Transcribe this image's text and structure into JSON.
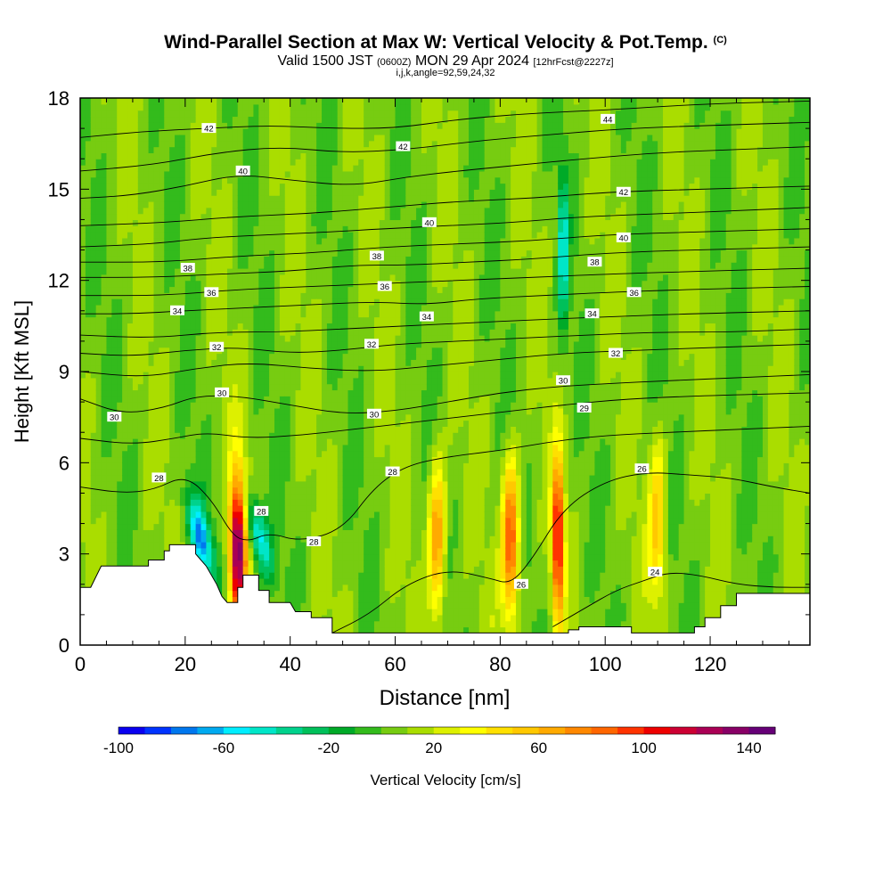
{
  "header": {
    "title": "Wind-Parallel Section at Max W: Vertical Velocity & Pot.Temp.",
    "title_unit": "(C)",
    "valid_prefix": "Valid 1500 JST",
    "valid_zulu": "(0600Z)",
    "valid_date": "MON 29 Apr 2024",
    "forecast": "[12hrFcst@2227z]",
    "indices": "i,j,k,angle=92,59,24,32"
  },
  "chart_data": {
    "type": "heatmap",
    "xlabel": "Distance [nm]",
    "ylabel": "Height [Kft MSL]",
    "xlim": [
      0,
      139
    ],
    "ylim": [
      0,
      18
    ],
    "x_ticks": [
      0,
      20,
      40,
      60,
      80,
      100,
      120
    ],
    "y_ticks": [
      0,
      3,
      6,
      9,
      12,
      15,
      18
    ],
    "colorbar": {
      "label": "Vertical Velocity [cm/s]",
      "range": [
        -100,
        150
      ],
      "step": 10,
      "ticks": [
        -100,
        -60,
        -20,
        20,
        60,
        100,
        140
      ],
      "colors": [
        "#0a00f0",
        "#0033ff",
        "#0077ee",
        "#00aaf0",
        "#00eeff",
        "#00e6c8",
        "#00d28c",
        "#00c05a",
        "#00aa28",
        "#33bb1c",
        "#77cc11",
        "#aadd00",
        "#ddf000",
        "#ffff00",
        "#ffe000",
        "#ffc800",
        "#ffaa00",
        "#ff8800",
        "#ff6600",
        "#ff3300",
        "#ee0000",
        "#cc0033",
        "#aa0055",
        "#880066",
        "#660077"
      ]
    },
    "terrain_kft": [
      [
        0,
        1.9
      ],
      [
        2,
        1.9
      ],
      [
        4,
        2.6
      ],
      [
        13,
        2.6
      ],
      [
        13,
        2.6
      ],
      [
        13,
        2.8
      ],
      [
        16,
        2.8
      ],
      [
        16,
        3.1
      ],
      [
        17,
        3.1
      ],
      [
        17,
        3.3
      ],
      [
        22,
        3.3
      ],
      [
        22,
        3.0
      ],
      [
        24,
        2.6
      ],
      [
        26,
        2.0
      ],
      [
        27,
        1.6
      ],
      [
        28,
        1.4
      ],
      [
        28,
        1.4
      ],
      [
        30,
        1.4
      ],
      [
        30,
        1.9
      ],
      [
        31,
        1.9
      ],
      [
        31,
        2.3
      ],
      [
        34,
        2.3
      ],
      [
        34,
        1.8
      ],
      [
        36,
        1.8
      ],
      [
        36,
        1.4
      ],
      [
        40,
        1.4
      ],
      [
        41,
        1.1
      ],
      [
        44,
        1.1
      ],
      [
        44,
        0.9
      ],
      [
        48,
        0.9
      ],
      [
        48,
        0.4
      ],
      [
        93,
        0.4
      ],
      [
        93,
        0.5
      ],
      [
        95,
        0.5
      ],
      [
        95,
        0.6
      ],
      [
        105,
        0.6
      ],
      [
        105,
        0.4
      ],
      [
        117,
        0.4
      ],
      [
        117,
        0.6
      ],
      [
        119,
        0.6
      ],
      [
        119,
        0.9
      ],
      [
        122,
        0.9
      ],
      [
        122,
        1.3
      ],
      [
        125,
        1.3
      ],
      [
        125,
        1.7
      ],
      [
        139,
        1.7
      ]
    ],
    "updraft_cores": [
      {
        "x": 30,
        "y": 3.2,
        "peak_cm_s": 130
      },
      {
        "x": 68,
        "y": 3.5,
        "peak_cm_s": 70
      },
      {
        "x": 82,
        "y": 3.5,
        "peak_cm_s": 90
      },
      {
        "x": 91,
        "y": 3.5,
        "peak_cm_s": 110
      },
      {
        "x": 110,
        "y": 4.2,
        "peak_cm_s": 50
      }
    ],
    "downdraft_cores": [
      {
        "x": 23,
        "y": 3.5,
        "peak_cm_s": -70
      },
      {
        "x": 34,
        "y": 3.6,
        "peak_cm_s": -60
      },
      {
        "x": 92,
        "y": 13.0,
        "peak_cm_s": -55
      }
    ],
    "isentropes": [
      {
        "value": 24,
        "pts": [
          [
            90,
            0.6
          ],
          [
            96,
            1.2
          ],
          [
            102,
            1.8
          ],
          [
            107,
            2.1
          ],
          [
            112,
            2.4
          ],
          [
            118,
            2.3
          ],
          [
            125,
            2.0
          ],
          [
            132,
            1.9
          ],
          [
            139,
            1.9
          ]
        ]
      },
      {
        "value": 26,
        "pts": [
          [
            48,
            0.4
          ],
          [
            55,
            1.0
          ],
          [
            62,
            2.0
          ],
          [
            70,
            2.5
          ],
          [
            78,
            2.2
          ],
          [
            82,
            2.0
          ],
          [
            86,
            2.8
          ],
          [
            92,
            4.5
          ],
          [
            100,
            5.4
          ],
          [
            108,
            5.7
          ],
          [
            116,
            5.6
          ],
          [
            124,
            5.5
          ],
          [
            132,
            5.2
          ],
          [
            139,
            5.0
          ]
        ]
      },
      {
        "value": 28,
        "pts": [
          [
            0,
            5.2
          ],
          [
            8,
            5.0
          ],
          [
            14,
            5.1
          ],
          [
            20,
            5.6
          ],
          [
            25,
            4.8
          ],
          [
            29,
            3.6
          ],
          [
            32,
            3.4
          ],
          [
            36,
            3.7
          ],
          [
            42,
            3.4
          ],
          [
            50,
            3.8
          ],
          [
            56,
            5.2
          ],
          [
            62,
            5.9
          ],
          [
            70,
            6.2
          ],
          [
            80,
            6.4
          ],
          [
            90,
            6.7
          ],
          [
            100,
            6.9
          ],
          [
            112,
            7.0
          ],
          [
            126,
            7.1
          ],
          [
            139,
            7.2
          ]
        ]
      },
      {
        "value": 29,
        "pts": [
          [
            0,
            6.8
          ],
          [
            10,
            6.6
          ],
          [
            18,
            6.8
          ],
          [
            24,
            7.0
          ],
          [
            32,
            6.8
          ],
          [
            42,
            6.9
          ],
          [
            52,
            7.1
          ],
          [
            62,
            7.3
          ],
          [
            72,
            7.5
          ],
          [
            82,
            7.7
          ],
          [
            92,
            7.9
          ],
          [
            104,
            8.1
          ],
          [
            118,
            8.2
          ],
          [
            139,
            8.3
          ]
        ]
      },
      {
        "value": 30,
        "pts": [
          [
            0,
            8.1
          ],
          [
            8,
            7.6
          ],
          [
            16,
            7.8
          ],
          [
            22,
            8.2
          ],
          [
            30,
            8.2
          ],
          [
            40,
            7.9
          ],
          [
            50,
            7.6
          ],
          [
            60,
            7.7
          ],
          [
            70,
            8.0
          ],
          [
            80,
            8.3
          ],
          [
            90,
            8.5
          ],
          [
            100,
            8.6
          ],
          [
            112,
            8.7
          ],
          [
            126,
            8.8
          ],
          [
            139,
            8.9
          ]
        ]
      },
      {
        "value": 31,
        "pts": [
          [
            0,
            9.0
          ],
          [
            12,
            8.8
          ],
          [
            22,
            9.1
          ],
          [
            32,
            9.3
          ],
          [
            44,
            9.1
          ],
          [
            56,
            9.0
          ],
          [
            68,
            9.2
          ],
          [
            80,
            9.4
          ],
          [
            92,
            9.6
          ],
          [
            106,
            9.7
          ],
          [
            122,
            9.8
          ],
          [
            139,
            9.9
          ]
        ]
      },
      {
        "value": 32,
        "pts": [
          [
            0,
            9.6
          ],
          [
            10,
            9.5
          ],
          [
            20,
            9.7
          ],
          [
            30,
            9.8
          ],
          [
            40,
            9.6
          ],
          [
            50,
            9.7
          ],
          [
            60,
            9.9
          ],
          [
            72,
            10.0
          ],
          [
            84,
            10.1
          ],
          [
            96,
            10.2
          ],
          [
            110,
            10.3
          ],
          [
            124,
            10.3
          ],
          [
            139,
            10.4
          ]
        ]
      },
      {
        "value": 33,
        "pts": [
          [
            0,
            10.2
          ],
          [
            14,
            10.1
          ],
          [
            26,
            10.3
          ],
          [
            38,
            10.3
          ],
          [
            50,
            10.4
          ],
          [
            62,
            10.5
          ],
          [
            74,
            10.6
          ],
          [
            86,
            10.7
          ],
          [
            100,
            10.8
          ],
          [
            116,
            10.9
          ],
          [
            139,
            11.0
          ]
        ]
      },
      {
        "value": 34,
        "pts": [
          [
            0,
            10.9
          ],
          [
            10,
            10.9
          ],
          [
            20,
            11.0
          ],
          [
            32,
            11.1
          ],
          [
            44,
            11.2
          ],
          [
            56,
            11.3
          ],
          [
            66,
            11.2
          ],
          [
            76,
            11.4
          ],
          [
            88,
            11.5
          ],
          [
            100,
            11.6
          ],
          [
            116,
            11.7
          ],
          [
            139,
            11.8
          ]
        ]
      },
      {
        "value": 35,
        "pts": [
          [
            0,
            11.5
          ],
          [
            16,
            11.5
          ],
          [
            30,
            11.7
          ],
          [
            44,
            11.8
          ],
          [
            58,
            11.9
          ],
          [
            72,
            12.0
          ],
          [
            86,
            12.1
          ],
          [
            100,
            12.2
          ],
          [
            118,
            12.3
          ],
          [
            139,
            12.4
          ]
        ]
      },
      {
        "value": 36,
        "pts": [
          [
            0,
            12.1
          ],
          [
            14,
            12.1
          ],
          [
            26,
            12.2
          ],
          [
            40,
            12.3
          ],
          [
            52,
            12.5
          ],
          [
            62,
            12.5
          ],
          [
            74,
            12.6
          ],
          [
            86,
            12.7
          ],
          [
            100,
            12.9
          ],
          [
            116,
            13.0
          ],
          [
            139,
            13.1
          ]
        ]
      },
      {
        "value": 37,
        "pts": [
          [
            0,
            12.6
          ],
          [
            16,
            12.6
          ],
          [
            30,
            12.8
          ],
          [
            44,
            12.9
          ],
          [
            58,
            13.1
          ],
          [
            72,
            13.2
          ],
          [
            86,
            13.3
          ],
          [
            100,
            13.5
          ],
          [
            118,
            13.6
          ],
          [
            139,
            13.7
          ]
        ]
      },
      {
        "value": 38,
        "pts": [
          [
            0,
            13.1
          ],
          [
            14,
            13.2
          ],
          [
            24,
            13.4
          ],
          [
            36,
            13.5
          ],
          [
            48,
            13.6
          ],
          [
            58,
            13.7
          ],
          [
            70,
            13.8
          ],
          [
            82,
            13.9
          ],
          [
            96,
            14.1
          ],
          [
            112,
            14.2
          ],
          [
            126,
            14.3
          ],
          [
            139,
            14.4
          ]
        ]
      },
      {
        "value": 39,
        "pts": [
          [
            0,
            13.8
          ],
          [
            16,
            13.9
          ],
          [
            30,
            14.1
          ],
          [
            44,
            14.2
          ],
          [
            58,
            14.4
          ],
          [
            72,
            14.6
          ],
          [
            86,
            14.7
          ],
          [
            100,
            14.9
          ],
          [
            118,
            15.0
          ],
          [
            139,
            15.1
          ]
        ]
      },
      {
        "value": 40,
        "pts": [
          [
            0,
            14.7
          ],
          [
            10,
            14.8
          ],
          [
            20,
            15.1
          ],
          [
            30,
            15.5
          ],
          [
            40,
            15.3
          ],
          [
            52,
            15.1
          ],
          [
            62,
            15.4
          ],
          [
            72,
            15.6
          ],
          [
            84,
            15.8
          ],
          [
            96,
            16.0
          ],
          [
            110,
            16.2
          ],
          [
            124,
            16.3
          ],
          [
            139,
            16.4
          ]
        ]
      },
      {
        "value": 41,
        "pts": [
          [
            0,
            15.6
          ],
          [
            14,
            15.8
          ],
          [
            26,
            16.2
          ],
          [
            38,
            16.4
          ],
          [
            50,
            16.2
          ],
          [
            62,
            16.3
          ],
          [
            76,
            16.6
          ],
          [
            90,
            16.8
          ],
          [
            104,
            17.0
          ],
          [
            120,
            17.1
          ],
          [
            139,
            17.2
          ]
        ]
      },
      {
        "value": 42,
        "pts": [
          [
            0,
            16.7
          ],
          [
            12,
            16.9
          ],
          [
            24,
            17.0
          ],
          [
            36,
            17.1
          ],
          [
            48,
            17.0
          ],
          [
            60,
            17.0
          ],
          [
            72,
            17.3
          ],
          [
            86,
            17.5
          ],
          [
            100,
            17.6
          ],
          [
            118,
            17.8
          ],
          [
            139,
            17.9
          ]
        ]
      }
    ],
    "contour_labels": [
      {
        "x": 24.5,
        "y": 17.0,
        "text": "42"
      },
      {
        "x": 61.5,
        "y": 16.4,
        "text": "42"
      },
      {
        "x": 100.5,
        "y": 17.3,
        "text": "44"
      },
      {
        "x": 31.0,
        "y": 15.6,
        "text": "40"
      },
      {
        "x": 103.5,
        "y": 14.9,
        "text": "42"
      },
      {
        "x": 66.5,
        "y": 13.9,
        "text": "40"
      },
      {
        "x": 103.5,
        "y": 13.4,
        "text": "40"
      },
      {
        "x": 20.5,
        "y": 12.4,
        "text": "38"
      },
      {
        "x": 56.5,
        "y": 12.8,
        "text": "38"
      },
      {
        "x": 98.0,
        "y": 12.6,
        "text": "38"
      },
      {
        "x": 25.0,
        "y": 11.6,
        "text": "36"
      },
      {
        "x": 58.0,
        "y": 11.8,
        "text": "36"
      },
      {
        "x": 105.5,
        "y": 11.6,
        "text": "36"
      },
      {
        "x": 18.5,
        "y": 11.0,
        "text": "34"
      },
      {
        "x": 66.0,
        "y": 10.8,
        "text": "34"
      },
      {
        "x": 97.5,
        "y": 10.9,
        "text": "34"
      },
      {
        "x": 26.0,
        "y": 9.8,
        "text": "32"
      },
      {
        "x": 55.5,
        "y": 9.9,
        "text": "32"
      },
      {
        "x": 102.0,
        "y": 9.6,
        "text": "32"
      },
      {
        "x": 27.0,
        "y": 8.3,
        "text": "30"
      },
      {
        "x": 56.0,
        "y": 7.6,
        "text": "30"
      },
      {
        "x": 92.0,
        "y": 8.7,
        "text": "30"
      },
      {
        "x": 6.5,
        "y": 7.5,
        "text": "30"
      },
      {
        "x": 96.0,
        "y": 7.8,
        "text": "29"
      },
      {
        "x": 15.0,
        "y": 5.5,
        "text": "28"
      },
      {
        "x": 59.5,
        "y": 5.7,
        "text": "28"
      },
      {
        "x": 34.5,
        "y": 4.4,
        "text": "28"
      },
      {
        "x": 44.5,
        "y": 3.4,
        "text": "28"
      },
      {
        "x": 107.0,
        "y": 5.8,
        "text": "26"
      },
      {
        "x": 84.0,
        "y": 2.0,
        "text": "26"
      },
      {
        "x": 109.5,
        "y": 2.4,
        "text": "24"
      }
    ]
  }
}
